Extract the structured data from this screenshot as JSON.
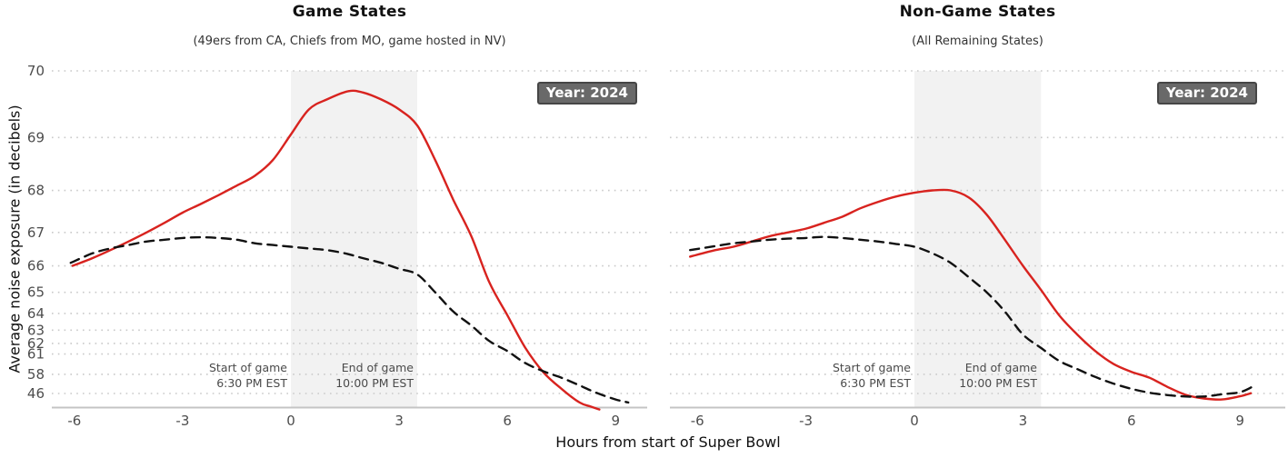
{
  "chart_data": {
    "type": "line",
    "xlabel": "Hours from start of Super Bowl",
    "ylabel": "Average noise exposure (in decibels)",
    "x_ticks": [
      -6,
      -3,
      0,
      3,
      6,
      9
    ],
    "y_ticks": [
      70,
      69,
      68,
      67,
      66,
      65,
      64,
      63,
      62,
      61,
      58,
      46
    ],
    "xlim": [
      -6.6,
      9.9
    ],
    "ylim": [
      46,
      70
    ],
    "y_scale_note": "y axis is linear in acoustic power 10^(dB/10); tick spacing compresses toward the bottom, values below 46 plot below the 46 gridline",
    "grid": "horizontal dotted gridlines only",
    "legend": "none",
    "colors": {
      "red_line": "#d8231f",
      "dashed_line": "#111111",
      "band": "#f2f2f2",
      "gridline": "#c9c9c9",
      "axis_line": "#c4c4c4",
      "tick_label": "#4d4d4d",
      "badge_bg": "#696969",
      "badge_border": "#464646",
      "badge_text": "#ffffff"
    },
    "panels": [
      {
        "title": "Game States",
        "subtitle": "(49ers from CA, Chiefs from MO, game hosted in NV)",
        "badge": "Year: 2024",
        "shaded_region": {
          "x_start": 0,
          "x_end": 3.5
        },
        "annotations": [
          {
            "label": "Start of game",
            "sublabel": "6:30 PM EST",
            "x": 0
          },
          {
            "label": "End of game",
            "sublabel": "10:00 PM EST",
            "x": 3.5
          }
        ],
        "series": [
          {
            "id": "red-solid-line",
            "style": "solid",
            "points": [
              [
                -6.05,
                66.0
              ],
              [
                -5.5,
                66.25
              ],
              [
                -5,
                66.5
              ],
              [
                -4.5,
                66.75
              ],
              [
                -4,
                67.0
              ],
              [
                -3.5,
                67.25
              ],
              [
                -3,
                67.5
              ],
              [
                -2.5,
                67.7
              ],
              [
                -2,
                67.9
              ],
              [
                -1.5,
                68.1
              ],
              [
                -1,
                68.3
              ],
              [
                -0.5,
                68.6
              ],
              [
                0,
                69.05
              ],
              [
                0.5,
                69.45
              ],
              [
                1,
                69.6
              ],
              [
                1.6,
                69.72
              ],
              [
                2,
                69.7
              ],
              [
                2.5,
                69.6
              ],
              [
                3,
                69.45
              ],
              [
                3.5,
                69.2
              ],
              [
                4,
                68.6
              ],
              [
                4.5,
                67.8
              ],
              [
                5,
                66.9
              ],
              [
                5.5,
                65.4
              ],
              [
                6,
                63.9
              ],
              [
                6.5,
                61.6
              ],
              [
                7,
                58.4
              ],
              [
                7.5,
                52.6
              ],
              [
                8,
                41.5
              ],
              [
                8.3,
                39.5
              ],
              [
                8.55,
                38.0
              ]
            ]
          },
          {
            "id": "black-dashed-line",
            "style": "dashed",
            "points": [
              [
                -6.1,
                66.1
              ],
              [
                -5.5,
                66.4
              ],
              [
                -5,
                66.55
              ],
              [
                -4.5,
                66.65
              ],
              [
                -4,
                66.75
              ],
              [
                -3.5,
                66.8
              ],
              [
                -3,
                66.85
              ],
              [
                -2.5,
                66.87
              ],
              [
                -2,
                66.85
              ],
              [
                -1.5,
                66.8
              ],
              [
                -1,
                66.7
              ],
              [
                -0.5,
                66.65
              ],
              [
                0,
                66.6
              ],
              [
                0.5,
                66.55
              ],
              [
                1,
                66.5
              ],
              [
                1.5,
                66.4
              ],
              [
                2,
                66.25
              ],
              [
                2.5,
                66.1
              ],
              [
                3,
                65.9
              ],
              [
                3.5,
                65.7
              ],
              [
                4,
                65.0
              ],
              [
                4.5,
                64.1
              ],
              [
                5,
                63.3
              ],
              [
                5.5,
                62.2
              ],
              [
                6,
                61.3
              ],
              [
                6.5,
                59.9
              ],
              [
                7,
                58.6
              ],
              [
                7.5,
                57.2
              ],
              [
                8,
                54.6
              ],
              [
                8.5,
                46.5
              ],
              [
                9,
                43.0
              ],
              [
                9.35,
                41.5
              ]
            ]
          }
        ]
      },
      {
        "title": "Non-Game States",
        "subtitle": "(All Remaining States)",
        "badge": "Year: 2024",
        "shaded_region": {
          "x_start": 0,
          "x_end": 3.5
        },
        "annotations": [
          {
            "label": "Start of game",
            "sublabel": "6:30 PM EST",
            "x": 0
          },
          {
            "label": "End of game",
            "sublabel": "10:00 PM EST",
            "x": 3.5
          }
        ],
        "series": [
          {
            "id": "red-solid-line",
            "style": "solid",
            "points": [
              [
                -6.2,
                66.3
              ],
              [
                -5.5,
                66.5
              ],
              [
                -5,
                66.6
              ],
              [
                -4.5,
                66.75
              ],
              [
                -4,
                66.9
              ],
              [
                -3.5,
                67.0
              ],
              [
                -3,
                67.1
              ],
              [
                -2.5,
                67.25
              ],
              [
                -2,
                67.4
              ],
              [
                -1.5,
                67.6
              ],
              [
                -1,
                67.75
              ],
              [
                -0.5,
                67.87
              ],
              [
                0,
                67.95
              ],
              [
                0.5,
                68.0
              ],
              [
                1,
                68.0
              ],
              [
                1.5,
                67.85
              ],
              [
                2,
                67.45
              ],
              [
                2.5,
                66.8
              ],
              [
                3,
                66.0
              ],
              [
                3.5,
                65.1
              ],
              [
                4,
                63.9
              ],
              [
                4.5,
                62.7
              ],
              [
                5,
                61.3
              ],
              [
                5.5,
                59.8
              ],
              [
                6,
                58.5
              ],
              [
                6.5,
                57.2
              ],
              [
                7,
                53.8
              ],
              [
                7.5,
                45.3
              ],
              [
                8,
                43.5
              ],
              [
                8.5,
                43.0
              ],
              [
                9,
                44.6
              ],
              [
                9.3,
                46.8
              ]
            ]
          },
          {
            "id": "black-dashed-line",
            "style": "dashed",
            "points": [
              [
                -6.2,
                66.5
              ],
              [
                -5.5,
                66.62
              ],
              [
                -5,
                66.7
              ],
              [
                -4.5,
                66.75
              ],
              [
                -4,
                66.8
              ],
              [
                -3.5,
                66.83
              ],
              [
                -3,
                66.85
              ],
              [
                -2.5,
                66.88
              ],
              [
                -2,
                66.85
              ],
              [
                -1.5,
                66.8
              ],
              [
                -1,
                66.75
              ],
              [
                -0.5,
                66.68
              ],
              [
                0,
                66.6
              ],
              [
                0.5,
                66.4
              ],
              [
                1,
                66.1
              ],
              [
                1.5,
                65.6
              ],
              [
                2,
                65.0
              ],
              [
                2.5,
                64.1
              ],
              [
                3,
                62.7
              ],
              [
                3.5,
                61.6
              ],
              [
                4,
                60.2
              ],
              [
                4.5,
                59.0
              ],
              [
                5,
                57.4
              ],
              [
                5.5,
                55.4
              ],
              [
                6,
                52.6
              ],
              [
                6.5,
                48.0
              ],
              [
                7,
                45.2
              ],
              [
                7.5,
                44.5
              ],
              [
                8,
                44.5
              ],
              [
                8.5,
                45.6
              ],
              [
                9,
                49.0
              ],
              [
                9.35,
                54.0
              ]
            ]
          }
        ]
      }
    ]
  }
}
